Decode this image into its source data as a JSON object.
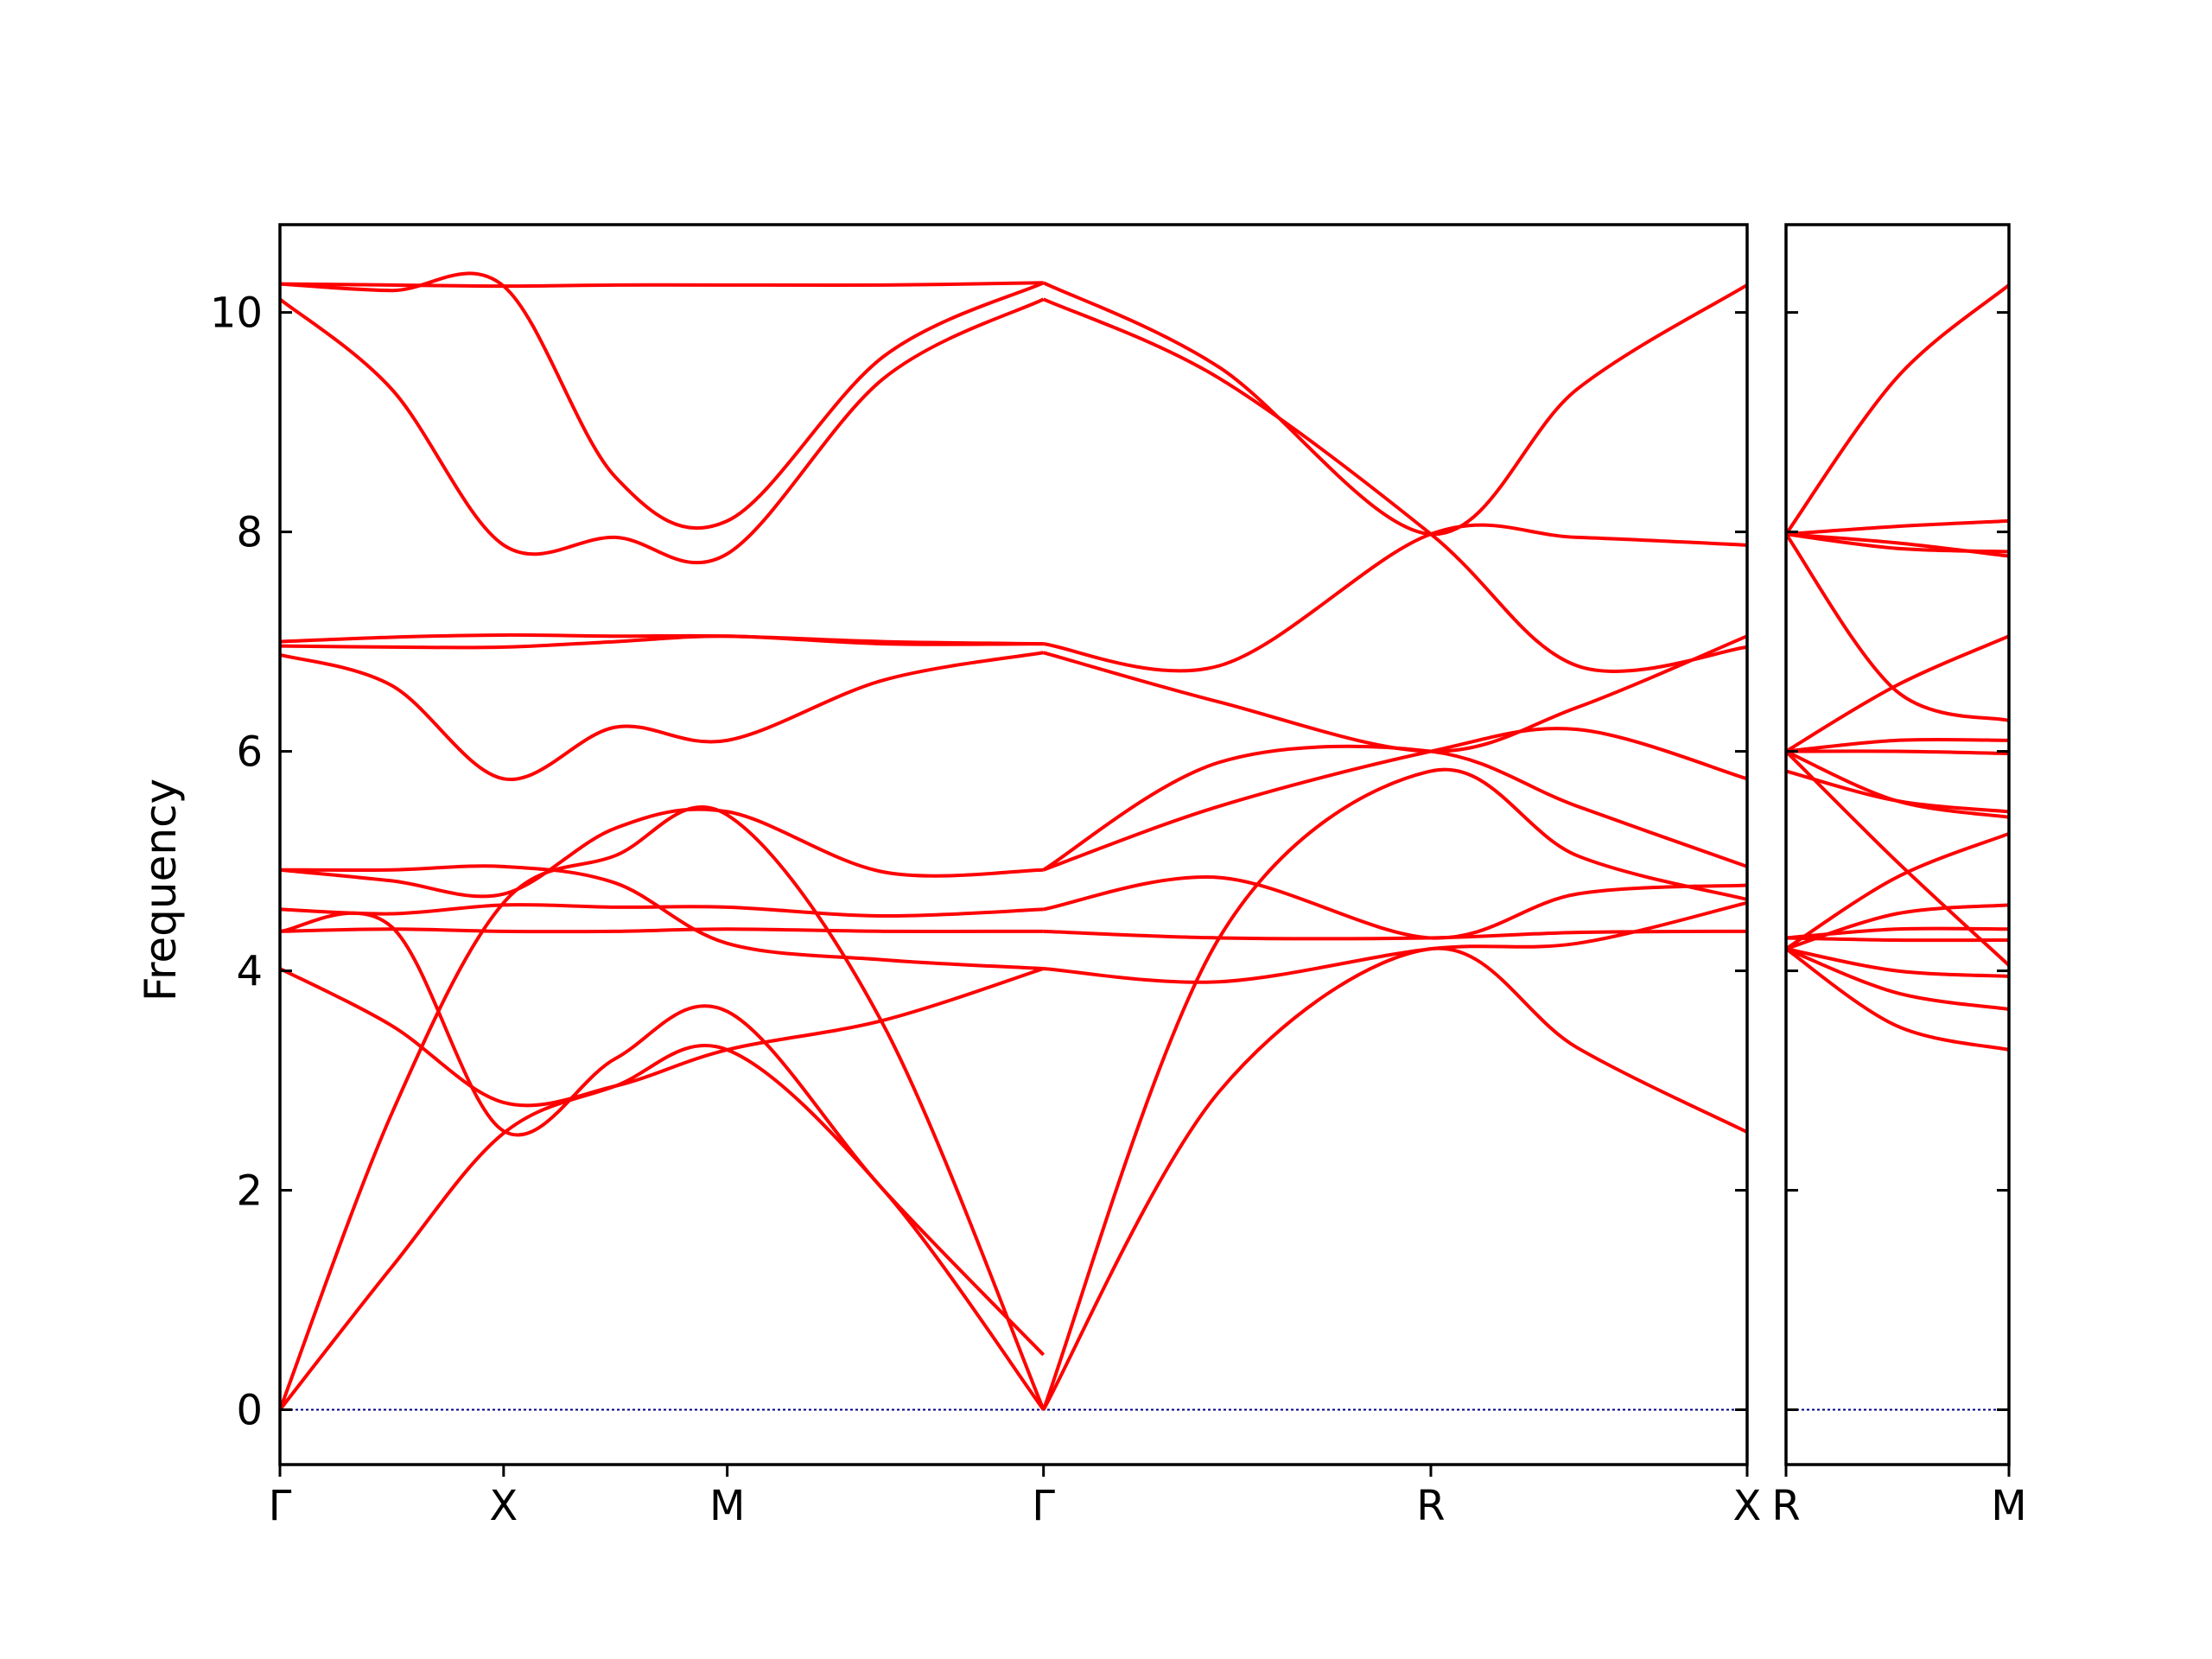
{
  "chart_data": {
    "type": "line",
    "title": "",
    "ylabel": "Frequency",
    "ylim": [
      -0.5,
      10.8
    ],
    "yticks": [
      0,
      2,
      4,
      6,
      8,
      10
    ],
    "ytick_labels": [
      "0",
      "2",
      "4",
      "6",
      "8",
      "10"
    ],
    "grid": false,
    "line_color": "#ff0000",
    "zero_line_color": "#00008b",
    "panels": [
      {
        "id": "left",
        "xlabels": [
          "Γ",
          "X",
          "M",
          "Γ",
          "R",
          "X"
        ],
        "xticks": [
          0,
          0.5,
          1,
          1.7071,
          2.5731,
          3.2802
        ],
        "xlim": [
          0,
          3.2802
        ],
        "series": [
          {
            "x": [
              0,
              0.25,
              0.5,
              0.75,
              1,
              1.35,
              1.7071
            ],
            "values": [
              0,
              1.3,
              2.52,
              2.95,
              3.28,
              2.0,
              0
            ]
          },
          {
            "x": [
              0,
              0.25,
              0.5,
              0.75,
              1,
              1.35,
              1.7071
            ],
            "values": [
              0,
              2.7,
              4.62,
              5.05,
              5.42,
              3.5,
              0
            ]
          },
          {
            "x": [
              1.7071,
              2.1,
              2.5731,
              2.9,
              3.2802
            ],
            "values": [
              0,
              2.9,
              4.2,
              3.3,
              2.53
            ]
          },
          {
            "x": [
              1.7071,
              2.1,
              2.5731,
              2.9,
              3.2802
            ],
            "values": [
              0,
              4.3,
              5.82,
              5.05,
              4.65
            ]
          },
          {
            "x": [
              0,
              0.25,
              0.5,
              0.75,
              1,
              1.35,
              1.7071
            ],
            "values": [
              4.02,
              3.5,
              2.8,
              2.95,
              3.28,
              3.55,
              4.02
            ]
          },
          {
            "x": [
              0,
              0.25,
              0.5,
              0.75,
              1,
              1.35,
              1.7071
            ],
            "values": [
              4.36,
              4.4,
              2.54,
              3.2,
              3.63,
              2.0,
              0.5
            ]
          },
          {
            "x": [
              0,
              0.25,
              0.5,
              0.75,
              1,
              1.35,
              1.7071
            ],
            "values": [
              4.36,
              4.38,
              4.36,
              4.36,
              4.38,
              4.36,
              4.36
            ]
          },
          {
            "x": [
              0,
              0.25,
              0.5,
              0.75,
              1,
              1.35,
              1.7071
            ],
            "values": [
              4.56,
              4.52,
              4.6,
              4.58,
              4.58,
              4.5,
              4.56
            ]
          },
          {
            "x": [
              0,
              0.25,
              0.5,
              0.75,
              1,
              1.35,
              1.7071
            ],
            "values": [
              4.92,
              4.92,
              4.95,
              4.8,
              4.25,
              4.1,
              4.02
            ]
          },
          {
            "x": [
              0,
              0.25,
              0.5,
              0.75,
              1,
              1.35,
              1.7071
            ],
            "values": [
              4.92,
              4.82,
              4.7,
              5.3,
              5.45,
              4.9,
              4.92
            ]
          },
          {
            "x": [
              0,
              0.25,
              0.5,
              0.75,
              1,
              1.35,
              1.7071
            ],
            "values": [
              6.88,
              6.6,
              5.75,
              6.22,
              6.1,
              6.65,
              6.9
            ]
          },
          {
            "x": [
              0,
              0.25,
              0.5,
              0.75,
              1,
              1.35,
              1.7071
            ],
            "values": [
              6.96,
              6.95,
              6.95,
              7.0,
              7.05,
              6.98,
              6.98
            ]
          },
          {
            "x": [
              0,
              0.25,
              0.5,
              0.75,
              1,
              1.35,
              1.7071
            ],
            "values": [
              7.0,
              7.04,
              7.06,
              7.05,
              7.05,
              7.0,
              6.98
            ]
          },
          {
            "x": [
              0,
              0.25,
              0.5,
              0.75,
              1,
              1.35,
              1.7071
            ],
            "values": [
              10.12,
              9.3,
              7.88,
              7.95,
              7.8,
              9.4,
              10.12
            ]
          },
          {
            "x": [
              0,
              0.25,
              0.5,
              0.75,
              1,
              1.35,
              1.7071
            ],
            "values": [
              10.26,
              10.2,
              10.24,
              8.5,
              8.1,
              9.6,
              10.27
            ]
          },
          {
            "x": [
              0,
              0.25,
              0.5,
              0.75,
              1,
              1.35,
              1.7071
            ],
            "values": [
              10.26,
              10.25,
              10.24,
              10.25,
              10.25,
              10.25,
              10.27
            ]
          },
          {
            "x": [
              1.7071,
              2.1,
              2.5731,
              2.9,
              3.2802
            ],
            "values": [
              10.27,
              9.5,
              7.98,
              9.3,
              10.25
            ]
          },
          {
            "x": [
              1.7071,
              2.1,
              2.5731,
              2.9,
              3.2802
            ],
            "values": [
              10.12,
              9.4,
              7.98,
              6.78,
              6.95
            ]
          },
          {
            "x": [
              1.7071,
              2.1,
              2.5731,
              2.9,
              3.2802
            ],
            "values": [
              6.98,
              6.78,
              7.98,
              7.95,
              7.88
            ]
          },
          {
            "x": [
              1.7071,
              2.1,
              2.5731,
              2.9,
              3.2802
            ],
            "values": [
              6.9,
              6.45,
              6.0,
              6.4,
              7.05
            ]
          },
          {
            "x": [
              1.7071,
              2.1,
              2.5731,
              2.9,
              3.2802
            ],
            "values": [
              4.92,
              5.5,
              6.0,
              6.2,
              5.75
            ]
          },
          {
            "x": [
              1.7071,
              2.1,
              2.5731,
              2.9,
              3.2802
            ],
            "values": [
              4.92,
              5.9,
              6.0,
              5.5,
              4.95
            ]
          },
          {
            "x": [
              1.7071,
              2.1,
              2.5731,
              2.9,
              3.2802
            ],
            "values": [
              4.56,
              4.85,
              4.3,
              4.7,
              4.78
            ]
          },
          {
            "x": [
              1.7071,
              2.1,
              2.5731,
              2.9,
              3.2802
            ],
            "values": [
              4.36,
              4.3,
              4.3,
              4.35,
              4.36
            ]
          },
          {
            "x": [
              1.7071,
              2.1,
              2.5731,
              2.9,
              3.2802
            ],
            "values": [
              4.02,
              3.9,
              4.2,
              4.25,
              4.62
            ]
          }
        ]
      },
      {
        "id": "right",
        "xlabels": [
          "R",
          "M"
        ],
        "xticks": [
          0,
          0.7071
        ],
        "xlim": [
          0,
          0.7071
        ],
        "series": [
          {
            "x": [
              0,
              0.35,
              0.7071
            ],
            "values": [
              7.98,
              9.4,
              10.25
            ]
          },
          {
            "x": [
              0,
              0.35,
              0.7071
            ],
            "values": [
              7.98,
              8.05,
              8.1
            ]
          },
          {
            "x": [
              0,
              0.35,
              0.7071
            ],
            "values": [
              7.98,
              7.85,
              7.82
            ]
          },
          {
            "x": [
              0,
              0.35,
              0.7071
            ],
            "values": [
              7.98,
              7.9,
              7.78
            ]
          },
          {
            "x": [
              0,
              0.35,
              0.7071
            ],
            "values": [
              7.98,
              6.55,
              6.28
            ]
          },
          {
            "x": [
              0,
              0.35,
              0.7071
            ],
            "values": [
              6.0,
              6.6,
              7.05
            ]
          },
          {
            "x": [
              0,
              0.35,
              0.7071
            ],
            "values": [
              6.0,
              6.1,
              6.1
            ]
          },
          {
            "x": [
              0,
              0.35,
              0.7071
            ],
            "values": [
              6.0,
              6.0,
              5.98
            ]
          },
          {
            "x": [
              0,
              0.35,
              0.7071
            ],
            "values": [
              5.82,
              5.55,
              5.45
            ]
          },
          {
            "x": [
              0,
              0.35,
              0.7071
            ],
            "values": [
              6.0,
              5.55,
              5.4
            ]
          },
          {
            "x": [
              0,
              0.35,
              0.7071
            ],
            "values": [
              6.0,
              5.0,
              4.05
            ]
          },
          {
            "x": [
              0,
              0.35,
              0.7071
            ],
            "values": [
              4.2,
              4.85,
              5.25
            ]
          },
          {
            "x": [
              0,
              0.35,
              0.7071
            ],
            "values": [
              4.2,
              4.52,
              4.6
            ]
          },
          {
            "x": [
              0,
              0.35,
              0.7071
            ],
            "values": [
              4.3,
              4.38,
              4.38
            ]
          },
          {
            "x": [
              0,
              0.35,
              0.7071
            ],
            "values": [
              4.3,
              4.28,
              4.28
            ]
          },
          {
            "x": [
              0,
              0.35,
              0.7071
            ],
            "values": [
              4.2,
              4.0,
              3.95
            ]
          },
          {
            "x": [
              0,
              0.35,
              0.7071
            ],
            "values": [
              4.2,
              3.8,
              3.65
            ]
          },
          {
            "x": [
              0,
              0.35,
              0.7071
            ],
            "values": [
              4.2,
              3.5,
              3.28
            ]
          }
        ]
      }
    ]
  }
}
